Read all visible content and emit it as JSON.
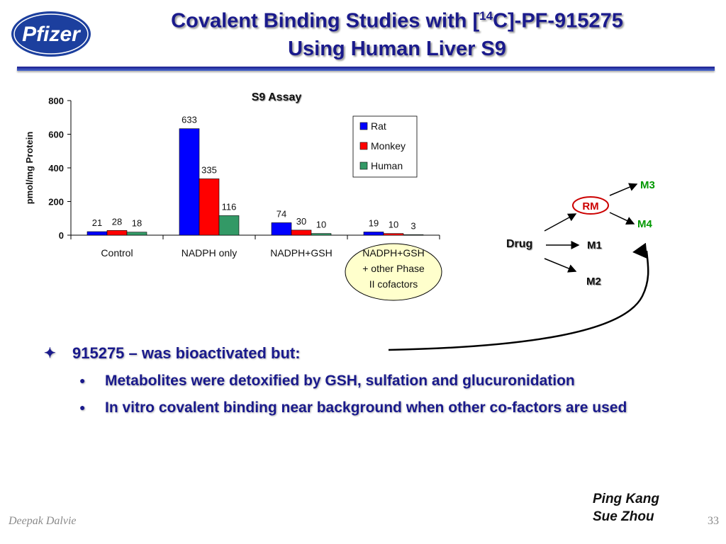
{
  "header": {
    "title_part1": "Covalent Binding Studies with [",
    "title_sup": "14",
    "title_part2": "C]-PF-915275",
    "title_line2": "Using Human Liver S9",
    "logo_text": "Pfizer"
  },
  "chart_data": {
    "type": "bar",
    "title": "S9 Assay",
    "ylabel": "pmol/mg Protein",
    "xlabel": "",
    "ylim": [
      0,
      800
    ],
    "yticks": [
      "0",
      "200",
      "400",
      "600",
      "800"
    ],
    "categories": [
      "Control",
      "NADPH only",
      "NADPH+GSH",
      "NADPH+GSH + other Phase II cofactors"
    ],
    "category_lines": [
      [
        "Control"
      ],
      [
        "NADPH only"
      ],
      [
        "NADPH+GSH"
      ],
      [
        "NADPH+GSH",
        "+ other Phase",
        "II cofactors"
      ]
    ],
    "series": [
      {
        "name": "Rat",
        "color": "#0000ff",
        "values": [
          21,
          633,
          74,
          19
        ]
      },
      {
        "name": "Monkey",
        "color": "#ff0000",
        "values": [
          28,
          335,
          30,
          10
        ]
      },
      {
        "name": "Human",
        "color": "#339966",
        "values": [
          18,
          116,
          10,
          3
        ]
      }
    ],
    "legend_position": "top-right",
    "highlight_category": 3,
    "highlight_color": "#ffffcc"
  },
  "diagram": {
    "drug": "Drug",
    "rm": "RM",
    "m1": "M1",
    "m2": "M2",
    "m3": "M3",
    "m4": "M4"
  },
  "bullets": {
    "main_mark": "✦",
    "main": "915275 – was bioactivated but:",
    "sub_mark": "●",
    "sub1": "Metabolites were detoxified by GSH, sulfation and glucuronidation",
    "sub2": "In vitro covalent binding near background when other co-factors are used"
  },
  "credits": {
    "line1": "Ping Kang",
    "line2": "Sue Zhou"
  },
  "footer": {
    "author": "Deepak Dalvie",
    "page": "33"
  },
  "colors": {
    "title": "#1a1a8c",
    "rm_box": "#cc0000",
    "metabolite_green": "#009900"
  }
}
